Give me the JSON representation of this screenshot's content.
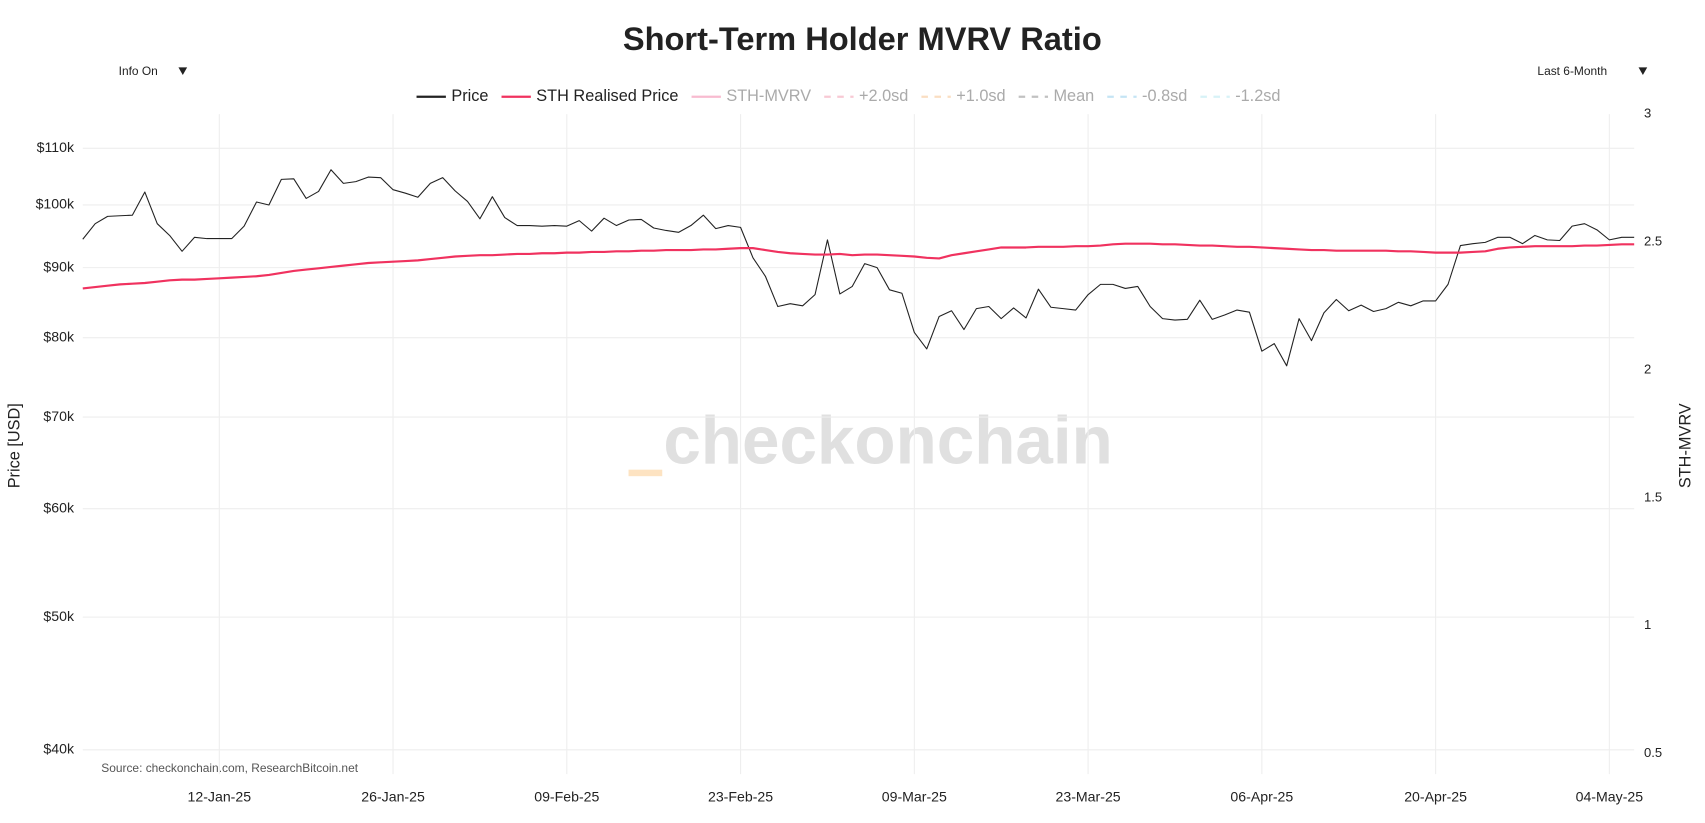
{
  "chart_data": {
    "type": "line",
    "title": "Short-Term Holder MVRV Ratio",
    "controls": {
      "info": "Info On",
      "range": "Last 6-Month"
    },
    "watermark": "checkonchain",
    "source": "Source: checkonchain.com, ResearchBitcoin.net",
    "y_label": "Price [USD]",
    "y2_label": "STH-MVRV",
    "log_y": true,
    "grid": true,
    "x": [
      "2025-01-01",
      "2025-01-02",
      "2025-01-03",
      "2025-01-04",
      "2025-01-05",
      "2025-01-06",
      "2025-01-07",
      "2025-01-08",
      "2025-01-09",
      "2025-01-10",
      "2025-01-11",
      "2025-01-12",
      "2025-01-13",
      "2025-01-14",
      "2025-01-15",
      "2025-01-16",
      "2025-01-17",
      "2025-01-18",
      "2025-01-19",
      "2025-01-20",
      "2025-01-21",
      "2025-01-22",
      "2025-01-23",
      "2025-01-24",
      "2025-01-25",
      "2025-01-26",
      "2025-01-27",
      "2025-01-28",
      "2025-01-29",
      "2025-01-30",
      "2025-01-31",
      "2025-02-01",
      "2025-02-02",
      "2025-02-03",
      "2025-02-04",
      "2025-02-05",
      "2025-02-06",
      "2025-02-07",
      "2025-02-08",
      "2025-02-09",
      "2025-02-10",
      "2025-02-11",
      "2025-02-12",
      "2025-02-13",
      "2025-02-14",
      "2025-02-15",
      "2025-02-16",
      "2025-02-17",
      "2025-02-18",
      "2025-02-19",
      "2025-02-20",
      "2025-02-21",
      "2025-02-22",
      "2025-02-23",
      "2025-02-24",
      "2025-02-25",
      "2025-02-26",
      "2025-02-27",
      "2025-02-28",
      "2025-03-01",
      "2025-03-02",
      "2025-03-03",
      "2025-03-04",
      "2025-03-05",
      "2025-03-06",
      "2025-03-07",
      "2025-03-08",
      "2025-03-09",
      "2025-03-10",
      "2025-03-11",
      "2025-03-12",
      "2025-03-13",
      "2025-03-14",
      "2025-03-15",
      "2025-03-16",
      "2025-03-17",
      "2025-03-18",
      "2025-03-19",
      "2025-03-20",
      "2025-03-21",
      "2025-03-22",
      "2025-03-23",
      "2025-03-24",
      "2025-03-25",
      "2025-03-26",
      "2025-03-27",
      "2025-03-28",
      "2025-03-29",
      "2025-03-30",
      "2025-03-31",
      "2025-04-01",
      "2025-04-02",
      "2025-04-03",
      "2025-04-04",
      "2025-04-05",
      "2025-04-06",
      "2025-04-07",
      "2025-04-08",
      "2025-04-09",
      "2025-04-10",
      "2025-04-11",
      "2025-04-12",
      "2025-04-13",
      "2025-04-14",
      "2025-04-15",
      "2025-04-16",
      "2025-04-17",
      "2025-04-18",
      "2025-04-19",
      "2025-04-20",
      "2025-04-21",
      "2025-04-22",
      "2025-04-23",
      "2025-04-24",
      "2025-04-25",
      "2025-04-26",
      "2025-04-27",
      "2025-04-28",
      "2025-04-29",
      "2025-04-30",
      "2025-05-01",
      "2025-05-02",
      "2025-05-03",
      "2025-05-04",
      "2025-05-05",
      "2025-05-06"
    ],
    "series": [
      {
        "name": "Price",
        "color": "#222222",
        "width": 1,
        "values": [
          94400,
          96900,
          98100,
          98200,
          98300,
          102200,
          96900,
          95000,
          92500,
          94700,
          94500,
          94500,
          94500,
          96500,
          100500,
          100000,
          104400,
          104500,
          101100,
          102300,
          106100,
          103700,
          104000,
          104800,
          104700,
          102600,
          102000,
          101300,
          103700,
          104700,
          102400,
          100600,
          97700,
          101400,
          97900,
          96600,
          96600,
          96500,
          96600,
          96500,
          97400,
          95700,
          97800,
          96600,
          97500,
          97600,
          96200,
          95800,
          95500,
          96600,
          98300,
          96100,
          96600,
          96300,
          91500,
          88700,
          84300,
          84700,
          84400,
          86000,
          94300,
          86100,
          87200,
          90600,
          90000,
          86700,
          86200,
          80700,
          78500,
          82900,
          83700,
          81100,
          84000,
          84300,
          82600,
          84100,
          82700,
          86800,
          84200,
          84000,
          83800,
          86000,
          87500,
          87500,
          86900,
          87200,
          84300,
          82600,
          82400,
          82500,
          85200,
          82500,
          83100,
          83800,
          83500,
          78200,
          79200,
          76300,
          82600,
          79600,
          83400,
          85300,
          83700,
          84500,
          83600,
          84000,
          84900,
          84400,
          85100,
          85100,
          87500,
          93400,
          93700,
          93900,
          94700,
          94700,
          93700,
          95000,
          94300,
          94200,
          96500,
          96900,
          95900,
          94300,
          94700,
          94700
        ]
      },
      {
        "name": "STH Realised Price",
        "color": "#f0325f",
        "width": 2,
        "values": [
          86900,
          87100,
          87300,
          87500,
          87600,
          87700,
          87900,
          88100,
          88200,
          88200,
          88300,
          88400,
          88500,
          88600,
          88700,
          88900,
          89200,
          89500,
          89700,
          89900,
          90100,
          90300,
          90500,
          90700,
          90800,
          90900,
          91000,
          91100,
          91300,
          91500,
          91700,
          91800,
          91900,
          91900,
          92000,
          92100,
          92100,
          92200,
          92200,
          92300,
          92300,
          92400,
          92400,
          92500,
          92500,
          92600,
          92600,
          92700,
          92700,
          92700,
          92800,
          92800,
          92900,
          93000,
          93000,
          92700,
          92400,
          92200,
          92100,
          92000,
          92000,
          92100,
          91900,
          92000,
          92000,
          91900,
          91800,
          91700,
          91500,
          91400,
          91900,
          92200,
          92500,
          92800,
          93100,
          93100,
          93100,
          93200,
          93200,
          93200,
          93300,
          93300,
          93400,
          93600,
          93700,
          93700,
          93700,
          93600,
          93600,
          93500,
          93400,
          93400,
          93300,
          93200,
          93200,
          93100,
          93000,
          92900,
          92800,
          92700,
          92700,
          92600,
          92600,
          92600,
          92600,
          92600,
          92500,
          92500,
          92400,
          92300,
          92300,
          92300,
          92400,
          92500,
          92900,
          93100,
          93200,
          93300,
          93300,
          93300,
          93300,
          93400,
          93400,
          93500,
          93600,
          93600
        ]
      }
    ],
    "legend_hidden": [
      {
        "name": "STH-MVRV",
        "color": "#f48fb1",
        "dashed": false
      },
      {
        "name": "+2.0sd",
        "color": "#f4a6b8",
        "dashed": true
      },
      {
        "name": "+1.0sd",
        "color": "#f7c99a",
        "dashed": true
      },
      {
        "name": "Mean",
        "color": "#999999",
        "dashed": true
      },
      {
        "name": "-0.8sd",
        "color": "#9fd3ee",
        "dashed": true
      },
      {
        "name": "-1.2sd",
        "color": "#bdeaf2",
        "dashed": true
      }
    ],
    "xlim": [
      "2025-01-01",
      "2025-05-06"
    ],
    "xticks": [
      {
        "value": "2025-01-12",
        "label": "12-Jan-25"
      },
      {
        "value": "2025-01-26",
        "label": "26-Jan-25"
      },
      {
        "value": "2025-02-09",
        "label": "09-Feb-25"
      },
      {
        "value": "2025-02-23",
        "label": "23-Feb-25"
      },
      {
        "value": "2025-03-09",
        "label": "09-Mar-25"
      },
      {
        "value": "2025-03-23",
        "label": "23-Mar-25"
      },
      {
        "value": "2025-04-06",
        "label": "06-Apr-25"
      },
      {
        "value": "2025-04-20",
        "label": "20-Apr-25"
      },
      {
        "value": "2025-05-04",
        "label": "04-May-25"
      }
    ],
    "ylim": [
      38400,
      116500
    ],
    "yticks": [
      {
        "value": 40000,
        "label": "$40k"
      },
      {
        "value": 50000,
        "label": "$50k"
      },
      {
        "value": 60000,
        "label": "$60k"
      },
      {
        "value": 70000,
        "label": "$70k"
      },
      {
        "value": 80000,
        "label": "$80k"
      },
      {
        "value": 90000,
        "label": "$90k"
      },
      {
        "value": 100000,
        "label": "$100k"
      },
      {
        "value": 110000,
        "label": "$110k"
      }
    ],
    "y2lim": [
      0.42,
      3
    ],
    "y2ticks": [
      0.5,
      1,
      1.5,
      2,
      2.5,
      3
    ]
  }
}
